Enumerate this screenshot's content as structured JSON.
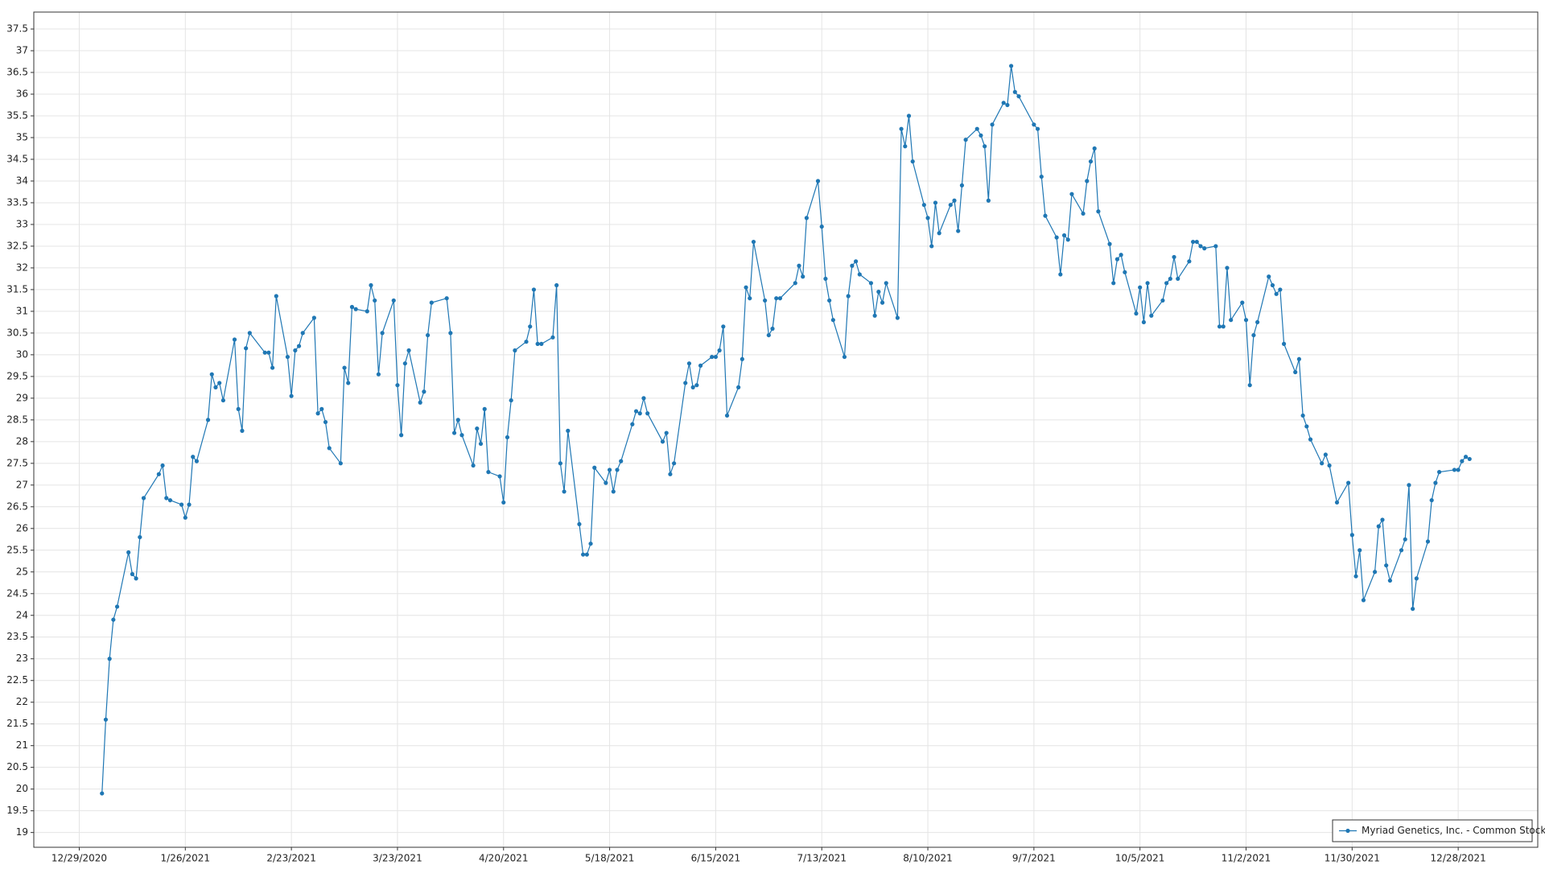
{
  "chart_data": {
    "type": "line",
    "x": [
      "1/4/2021",
      "1/5/2021",
      "1/6/2021",
      "1/7/2021",
      "1/8/2021",
      "1/11/2021",
      "1/12/2021",
      "1/13/2021",
      "1/14/2021",
      "1/15/2021",
      "1/19/2021",
      "1/20/2021",
      "1/21/2021",
      "1/22/2021",
      "1/25/2021",
      "1/26/2021",
      "1/27/2021",
      "1/28/2021",
      "1/29/2021",
      "2/1/2021",
      "2/2/2021",
      "2/3/2021",
      "2/4/2021",
      "2/5/2021",
      "2/8/2021",
      "2/9/2021",
      "2/10/2021",
      "2/11/2021",
      "2/12/2021",
      "2/16/2021",
      "2/17/2021",
      "2/18/2021",
      "2/19/2021",
      "2/22/2021",
      "2/23/2021",
      "2/24/2021",
      "2/25/2021",
      "2/26/2021",
      "3/1/2021",
      "3/2/2021",
      "3/3/2021",
      "3/4/2021",
      "3/5/2021",
      "3/8/2021",
      "3/9/2021",
      "3/10/2021",
      "3/11/2021",
      "3/12/2021",
      "3/15/2021",
      "3/16/2021",
      "3/17/2021",
      "3/18/2021",
      "3/19/2021",
      "3/22/2021",
      "3/23/2021",
      "3/24/2021",
      "3/25/2021",
      "3/26/2021",
      "3/29/2021",
      "3/30/2021",
      "3/31/2021",
      "4/1/2021",
      "4/5/2021",
      "4/6/2021",
      "4/7/2021",
      "4/8/2021",
      "4/9/2021",
      "4/12/2021",
      "4/13/2021",
      "4/14/2021",
      "4/15/2021",
      "4/16/2021",
      "4/19/2021",
      "4/20/2021",
      "4/21/2021",
      "4/22/2021",
      "4/23/2021",
      "4/26/2021",
      "4/27/2021",
      "4/28/2021",
      "4/29/2021",
      "4/30/2021",
      "5/3/2021",
      "5/4/2021",
      "5/5/2021",
      "5/6/2021",
      "5/7/2021",
      "5/10/2021",
      "5/11/2021",
      "5/12/2021",
      "5/13/2021",
      "5/14/2021",
      "5/17/2021",
      "5/18/2021",
      "5/19/2021",
      "5/20/2021",
      "5/21/2021",
      "5/24/2021",
      "5/25/2021",
      "5/26/2021",
      "5/27/2021",
      "5/28/2021",
      "6/1/2021",
      "6/2/2021",
      "6/3/2021",
      "6/4/2021",
      "6/7/2021",
      "6/8/2021",
      "6/9/2021",
      "6/10/2021",
      "6/11/2021",
      "6/14/2021",
      "6/15/2021",
      "6/16/2021",
      "6/17/2021",
      "6/18/2021",
      "6/21/2021",
      "6/22/2021",
      "6/23/2021",
      "6/24/2021",
      "6/25/2021",
      "6/28/2021",
      "6/29/2021",
      "6/30/2021",
      "7/1/2021",
      "7/2/2021",
      "7/6/2021",
      "7/7/2021",
      "7/8/2021",
      "7/9/2021",
      "7/12/2021",
      "7/13/2021",
      "7/14/2021",
      "7/15/2021",
      "7/16/2021",
      "7/19/2021",
      "7/20/2021",
      "7/21/2021",
      "7/22/2021",
      "7/23/2021",
      "7/26/2021",
      "7/27/2021",
      "7/28/2021",
      "7/29/2021",
      "7/30/2021",
      "8/2/2021",
      "8/3/2021",
      "8/4/2021",
      "8/5/2021",
      "8/6/2021",
      "8/9/2021",
      "8/10/2021",
      "8/11/2021",
      "8/12/2021",
      "8/13/2021",
      "8/16/2021",
      "8/17/2021",
      "8/18/2021",
      "8/19/2021",
      "8/20/2021",
      "8/23/2021",
      "8/24/2021",
      "8/25/2021",
      "8/26/2021",
      "8/27/2021",
      "8/30/2021",
      "8/31/2021",
      "9/1/2021",
      "9/2/2021",
      "9/3/2021",
      "9/7/2021",
      "9/8/2021",
      "9/9/2021",
      "9/10/2021",
      "9/13/2021",
      "9/14/2021",
      "9/15/2021",
      "9/16/2021",
      "9/17/2021",
      "9/20/2021",
      "9/21/2021",
      "9/22/2021",
      "9/23/2021",
      "9/24/2021",
      "9/27/2021",
      "9/28/2021",
      "9/29/2021",
      "9/30/2021",
      "10/1/2021",
      "10/4/2021",
      "10/5/2021",
      "10/6/2021",
      "10/7/2021",
      "10/8/2021",
      "10/11/2021",
      "10/12/2021",
      "10/13/2021",
      "10/14/2021",
      "10/15/2021",
      "10/18/2021",
      "10/19/2021",
      "10/20/2021",
      "10/21/2021",
      "10/22/2021",
      "10/25/2021",
      "10/26/2021",
      "10/27/2021",
      "10/28/2021",
      "10/29/2021",
      "11/1/2021",
      "11/2/2021",
      "11/3/2021",
      "11/4/2021",
      "11/5/2021",
      "11/8/2021",
      "11/9/2021",
      "11/10/2021",
      "11/11/2021",
      "11/12/2021",
      "11/15/2021",
      "11/16/2021",
      "11/17/2021",
      "11/18/2021",
      "11/19/2021",
      "11/22/2021",
      "11/23/2021",
      "11/24/2021",
      "11/26/2021",
      "11/29/2021",
      "11/30/2021",
      "12/1/2021",
      "12/2/2021",
      "12/3/2021",
      "12/6/2021",
      "12/7/2021",
      "12/8/2021",
      "12/9/2021",
      "12/10/2021",
      "12/13/2021",
      "12/14/2021",
      "12/15/2021",
      "12/16/2021",
      "12/17/2021",
      "12/20/2021",
      "12/21/2021",
      "12/22/2021",
      "12/23/2021",
      "12/27/2021",
      "12/28/2021",
      "12/29/2021",
      "12/30/2021",
      "12/31/2021"
    ],
    "series": [
      {
        "name": "Myriad Genetics, Inc. - Common Stock",
        "color": "#1f77b4",
        "values": [
          19.9,
          21.6,
          23.0,
          23.9,
          24.2,
          25.45,
          24.95,
          24.85,
          25.8,
          26.7,
          27.25,
          27.45,
          26.7,
          26.65,
          26.55,
          26.25,
          26.55,
          27.65,
          27.55,
          28.5,
          29.55,
          29.25,
          29.35,
          28.95,
          30.35,
          28.75,
          28.25,
          30.15,
          30.5,
          30.05,
          30.05,
          29.7,
          31.35,
          29.95,
          29.05,
          30.1,
          30.2,
          30.5,
          30.85,
          28.65,
          28.75,
          28.45,
          27.85,
          27.5,
          29.7,
          29.35,
          31.1,
          31.05,
          31.0,
          31.6,
          31.25,
          29.55,
          30.5,
          31.25,
          29.3,
          28.15,
          29.8,
          30.1,
          28.9,
          29.15,
          30.45,
          31.2,
          31.3,
          30.5,
          28.2,
          28.5,
          28.15,
          27.45,
          28.3,
          27.95,
          28.75,
          27.3,
          27.2,
          26.6,
          28.1,
          28.95,
          30.1,
          30.3,
          30.65,
          31.5,
          30.25,
          30.25,
          30.4,
          31.6,
          27.5,
          26.85,
          28.25,
          26.1,
          25.4,
          25.4,
          25.65,
          27.4,
          27.05,
          27.35,
          26.85,
          27.35,
          27.55,
          28.4,
          28.7,
          28.65,
          29.0,
          28.65,
          28.0,
          28.2,
          27.25,
          27.5,
          29.35,
          29.8,
          29.25,
          29.3,
          29.75,
          29.95,
          29.95,
          30.1,
          30.65,
          28.6,
          29.25,
          29.9,
          31.55,
          31.3,
          32.6,
          31.25,
          30.45,
          30.6,
          31.3,
          31.3,
          31.65,
          32.05,
          31.8,
          33.15,
          34.0,
          32.95,
          31.75,
          31.25,
          30.8,
          29.95,
          31.35,
          32.05,
          32.15,
          31.85,
          31.65,
          30.9,
          31.45,
          31.2,
          31.65,
          30.85,
          35.2,
          34.8,
          35.5,
          34.45,
          33.45,
          33.15,
          32.5,
          33.5,
          32.8,
          33.45,
          33.55,
          32.85,
          33.9,
          34.95,
          35.2,
          35.05,
          34.8,
          33.55,
          35.3,
          35.8,
          35.75,
          36.65,
          36.05,
          35.95,
          35.3,
          35.2,
          34.1,
          33.2,
          32.7,
          31.85,
          32.75,
          32.65,
          33.7,
          33.25,
          34.0,
          34.45,
          34.75,
          33.3,
          32.55,
          31.65,
          32.2,
          32.3,
          31.9,
          30.95,
          31.55,
          30.75,
          31.65,
          30.9,
          31.25,
          31.65,
          31.75,
          32.25,
          31.75,
          32.15,
          32.6,
          32.6,
          32.5,
          32.45,
          32.5,
          30.65,
          30.65,
          32.0,
          30.8,
          31.2,
          30.8,
          29.3,
          30.45,
          30.75,
          31.8,
          31.6,
          31.4,
          31.5,
          30.25,
          29.6,
          29.9,
          28.6,
          28.35,
          28.05,
          27.5,
          27.7,
          27.45,
          26.6,
          27.05,
          25.85,
          24.9,
          25.5,
          24.35,
          25.0,
          26.05,
          26.2,
          25.15,
          24.8,
          25.5,
          25.75,
          27.0,
          24.15,
          24.85,
          25.7,
          26.65,
          27.05,
          27.3,
          27.35,
          27.35,
          27.55,
          27.65,
          27.6
        ]
      }
    ],
    "xlim": [
      "12/17/2020",
      "1/18/2022"
    ],
    "xticks": [
      "12/29/2020",
      "1/26/2021",
      "2/23/2021",
      "3/23/2021",
      "4/20/2021",
      "5/18/2021",
      "6/15/2021",
      "7/13/2021",
      "8/10/2021",
      "9/7/2021",
      "10/5/2021",
      "11/2/2021",
      "11/30/2021",
      "12/28/2021"
    ],
    "ylim": [
      18.66,
      37.89
    ],
    "yticks": [
      19,
      19.5,
      20,
      20.5,
      21,
      21.5,
      22,
      22.5,
      23,
      23.5,
      24,
      24.5,
      25,
      25.5,
      26,
      26.5,
      27,
      27.5,
      28,
      28.5,
      29,
      29.5,
      30,
      30.5,
      31,
      31.5,
      32,
      32.5,
      33,
      33.5,
      34,
      34.5,
      35,
      35.5,
      36,
      36.5,
      37,
      37.5
    ],
    "grid": true,
    "legend": "lower right"
  }
}
